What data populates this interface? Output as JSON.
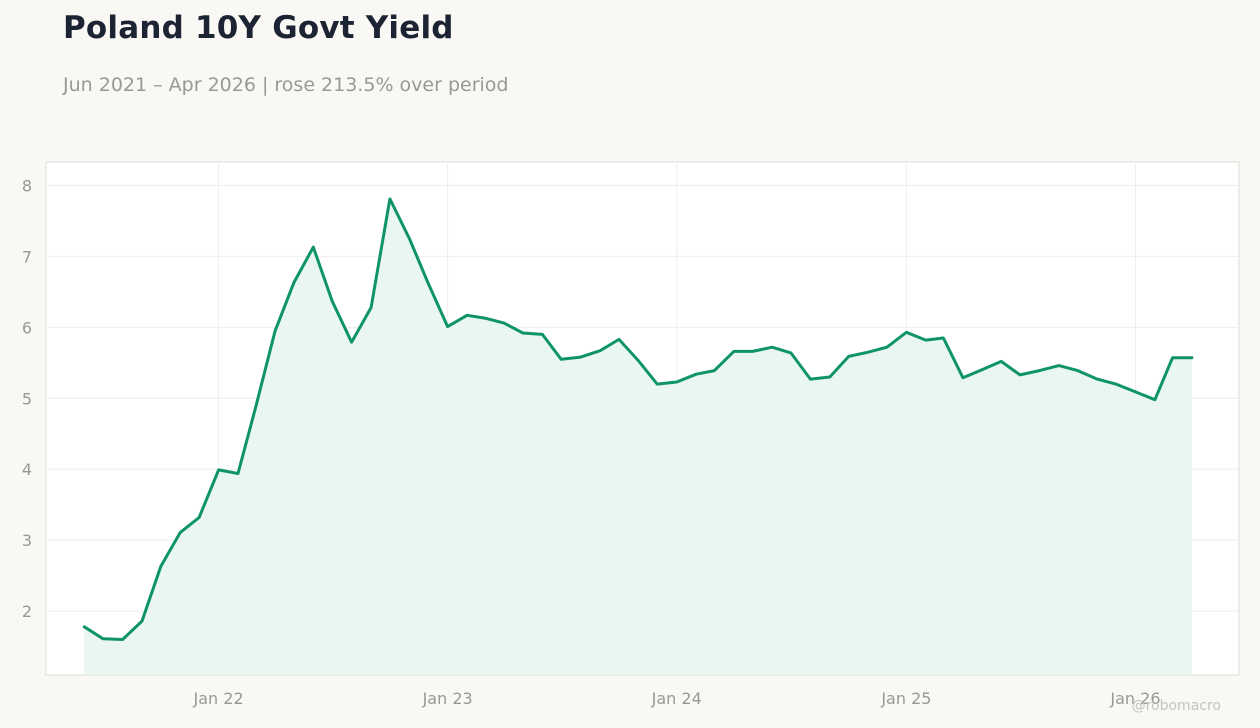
{
  "header": {
    "title": "Poland 10Y Govt Yield",
    "subtitle": "Jun 2021 – Apr 2026 | rose 213.5% over period"
  },
  "watermark": "@robomacro",
  "colors": {
    "line": "#0e9468",
    "fill": "#e8f5f0",
    "grid": "#efeeec",
    "plot_border": "#dedcd6",
    "plot_bg": "#ffffff",
    "page_bg": "#f9f8f5"
  },
  "chart_data": {
    "type": "area",
    "title": "Poland 10Y Govt Yield",
    "subtitle": "Jun 2021 – Apr 2026 | rose 213.5% over period",
    "xlabel": "",
    "ylabel": "",
    "xlim": [
      "2021-04-01",
      "2026-06-15"
    ],
    "ylim": [
      1.1,
      8.33
    ],
    "x_ticks": [
      {
        "date": "2022-01-01",
        "label": "Jan 22"
      },
      {
        "date": "2023-01-01",
        "label": "Jan 23"
      },
      {
        "date": "2024-01-01",
        "label": "Jan 24"
      },
      {
        "date": "2025-01-01",
        "label": "Jan 25"
      },
      {
        "date": "2026-01-01",
        "label": "Jan 26"
      }
    ],
    "y_ticks": [
      2,
      3,
      4,
      5,
      6,
      7,
      8
    ],
    "grid": true,
    "legend": "none",
    "series": [
      {
        "x": [
          "2021-06-01",
          "2021-07-01",
          "2021-08-01",
          "2021-09-01",
          "2021-10-01",
          "2021-11-01",
          "2021-12-01",
          "2022-01-01",
          "2022-02-01",
          "2022-03-01",
          "2022-04-01",
          "2022-05-01",
          "2022-06-01",
          "2022-07-01",
          "2022-08-01",
          "2022-09-01",
          "2022-10-01",
          "2022-11-01",
          "2022-12-01",
          "2023-01-01",
          "2023-02-01",
          "2023-03-01",
          "2023-04-01",
          "2023-05-01",
          "2023-06-01",
          "2023-07-01",
          "2023-08-01",
          "2023-09-01",
          "2023-10-01",
          "2023-11-01",
          "2023-12-01",
          "2024-01-01",
          "2024-02-01",
          "2024-03-01",
          "2024-04-01",
          "2024-05-01",
          "2024-06-01",
          "2024-07-01",
          "2024-08-01",
          "2024-09-01",
          "2024-10-01",
          "2024-11-01",
          "2024-12-01",
          "2025-01-01",
          "2025-02-01",
          "2025-03-01",
          "2025-04-01",
          "2025-05-01",
          "2025-06-01",
          "2025-07-01",
          "2025-08-01",
          "2025-09-01",
          "2025-10-01",
          "2025-11-01",
          "2025-12-01",
          "2026-01-01",
          "2026-02-01",
          "2026-03-01",
          "2026-04-01"
        ],
        "values": [
          1.78,
          1.61,
          1.6,
          1.86,
          2.63,
          3.11,
          3.32,
          3.99,
          3.94,
          4.87,
          5.95,
          6.63,
          7.13,
          6.37,
          5.79,
          6.28,
          7.81,
          7.25,
          6.62,
          6.01,
          6.17,
          6.13,
          6.06,
          5.92,
          5.9,
          5.55,
          5.58,
          5.67,
          5.83,
          5.53,
          5.2,
          5.23,
          5.34,
          5.39,
          5.66,
          5.66,
          5.72,
          5.64,
          5.27,
          5.3,
          5.59,
          5.65,
          5.72,
          5.93,
          5.82,
          5.85,
          5.29,
          5.4,
          5.52,
          5.33,
          5.39,
          5.46,
          5.39,
          5.27,
          5.2,
          5.09,
          4.98,
          5.57,
          5.57
        ]
      }
    ]
  }
}
